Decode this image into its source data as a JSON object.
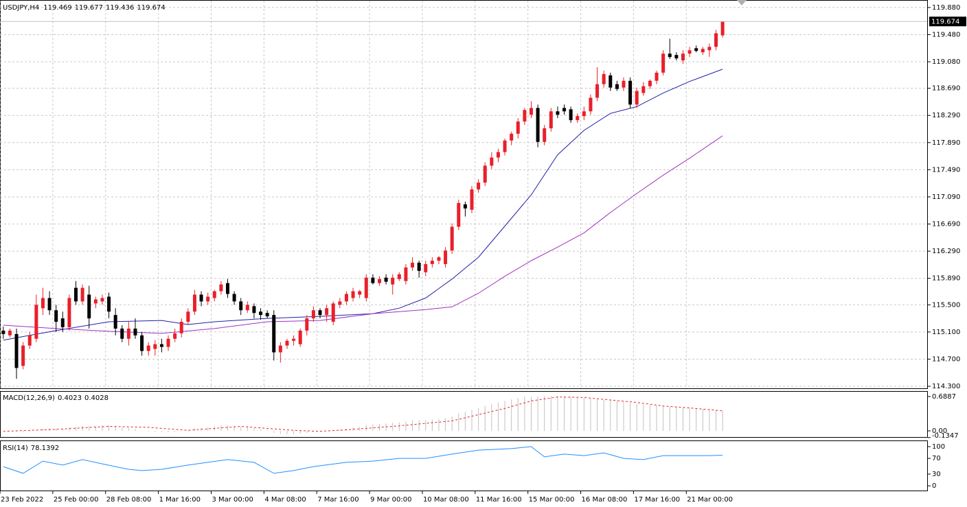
{
  "chart_data": [
    {
      "type": "candlestick",
      "title": "USDJPY,H4",
      "up_color": "#e8202a",
      "down_color": "#000000",
      "grid": true,
      "xlim": [
        -0.5,
        140
      ],
      "ylim": [
        114.27,
        119.98
      ],
      "xticks": [
        {
          "value": -0.5,
          "label": "23 Feb 2022"
        },
        {
          "value": 7.5,
          "label": "25 Feb 00:00"
        },
        {
          "value": 15.5,
          "label": "28 Feb 08:00"
        },
        {
          "value": 23.5,
          "label": "1 Mar 16:00"
        },
        {
          "value": 31.5,
          "label": "3 Mar 00:00"
        },
        {
          "value": 39.5,
          "label": "4 Mar 08:00"
        },
        {
          "value": 47.5,
          "label": "7 Mar 16:00"
        },
        {
          "value": 55.5,
          "label": "9 Mar 00:00"
        },
        {
          "value": 63.5,
          "label": "10 Mar 08:00"
        },
        {
          "value": 71.5,
          "label": "11 Mar 16:00"
        },
        {
          "value": 79.5,
          "label": "15 Mar 00:00"
        },
        {
          "value": 87.5,
          "label": "16 Mar 08:00"
        },
        {
          "value": 95.5,
          "label": "17 Mar 16:00"
        },
        {
          "value": 103.5,
          "label": "21 Mar 00:00"
        }
      ],
      "yticks": [
        {
          "value": 114.3,
          "label": "114.300"
        },
        {
          "value": 114.7,
          "label": "114.700"
        },
        {
          "value": 115.1,
          "label": "115.100"
        },
        {
          "value": 115.5,
          "label": "115.500"
        },
        {
          "value": 115.89,
          "label": "115.890"
        },
        {
          "value": 116.29,
          "label": "116.290"
        },
        {
          "value": 116.69,
          "label": "116.690"
        },
        {
          "value": 117.09,
          "label": "117.090"
        },
        {
          "value": 117.49,
          "label": "117.490"
        },
        {
          "value": 117.89,
          "label": "117.890"
        },
        {
          "value": 118.29,
          "label": "118.290"
        },
        {
          "value": 118.69,
          "label": "118.690"
        },
        {
          "value": 119.08,
          "label": "119.080"
        },
        {
          "value": 119.48,
          "label": "119.480"
        },
        {
          "value": 119.88,
          "label": "119.880"
        }
      ],
      "ohlc": [
        [
          115.12,
          115.18,
          115.0,
          115.07
        ],
        [
          115.05,
          115.15,
          115.02,
          115.12
        ],
        [
          115.07,
          115.15,
          114.41,
          114.57
        ],
        [
          114.6,
          114.95,
          114.55,
          114.9
        ],
        [
          114.9,
          115.1,
          114.85,
          115.05
        ],
        [
          115.0,
          115.65,
          114.95,
          115.5
        ],
        [
          115.45,
          115.75,
          115.35,
          115.6
        ],
        [
          115.6,
          115.7,
          115.35,
          115.42
        ],
        [
          115.42,
          115.5,
          115.1,
          115.25
        ],
        [
          115.3,
          115.4,
          115.1,
          115.17
        ],
        [
          115.17,
          115.65,
          115.12,
          115.6
        ],
        [
          115.75,
          115.85,
          115.5,
          115.55
        ],
        [
          115.55,
          115.8,
          115.5,
          115.75
        ],
        [
          115.65,
          115.78,
          115.15,
          115.3
        ],
        [
          115.52,
          115.62,
          115.45,
          115.58
        ],
        [
          115.55,
          115.65,
          115.5,
          115.6
        ],
        [
          115.62,
          115.68,
          115.3,
          115.4
        ],
        [
          115.35,
          115.45,
          115.05,
          115.15
        ],
        [
          115.15,
          115.2,
          114.95,
          115.0
        ],
        [
          115.0,
          115.25,
          114.9,
          115.15
        ],
        [
          115.15,
          115.3,
          115.0,
          115.05
        ],
        [
          115.05,
          115.1,
          114.75,
          114.82
        ],
        [
          114.82,
          114.95,
          114.75,
          114.9
        ],
        [
          114.85,
          114.98,
          114.75,
          114.92
        ],
        [
          114.92,
          115.0,
          114.8,
          114.88
        ],
        [
          114.88,
          115.05,
          114.82,
          115.0
        ],
        [
          115.0,
          115.15,
          114.95,
          115.08
        ],
        [
          115.08,
          115.3,
          115.02,
          115.25
        ],
        [
          115.25,
          115.45,
          115.2,
          115.4
        ],
        [
          115.4,
          115.72,
          115.35,
          115.65
        ],
        [
          115.65,
          115.7,
          115.48,
          115.55
        ],
        [
          115.55,
          115.68,
          115.5,
          115.62
        ],
        [
          115.6,
          115.72,
          115.55,
          115.7
        ],
        [
          115.7,
          115.85,
          115.65,
          115.8
        ],
        [
          115.82,
          115.88,
          115.6,
          115.66
        ],
        [
          115.66,
          115.7,
          115.5,
          115.55
        ],
        [
          115.55,
          115.6,
          115.35,
          115.42
        ],
        [
          115.42,
          115.55,
          115.38,
          115.5
        ],
        [
          115.48,
          115.52,
          115.3,
          115.38
        ],
        [
          115.4,
          115.45,
          115.28,
          115.35
        ],
        [
          115.38,
          115.42,
          115.3,
          115.33
        ],
        [
          115.35,
          115.42,
          114.68,
          114.8
        ],
        [
          114.8,
          114.95,
          114.65,
          114.9
        ],
        [
          114.9,
          115.0,
          114.85,
          114.97
        ],
        [
          114.97,
          115.05,
          114.9,
          115.0
        ],
        [
          114.92,
          115.15,
          114.88,
          115.12
        ],
        [
          115.12,
          115.35,
          115.05,
          115.3
        ],
        [
          115.3,
          115.48,
          115.25,
          115.42
        ],
        [
          115.42,
          115.45,
          115.3,
          115.35
        ],
        [
          115.35,
          115.5,
          115.25,
          115.45
        ],
        [
          115.25,
          115.55,
          115.2,
          115.52
        ],
        [
          115.5,
          115.6,
          115.45,
          115.55
        ],
        [
          115.55,
          115.7,
          115.5,
          115.66
        ],
        [
          115.6,
          115.75,
          115.55,
          115.7
        ],
        [
          115.65,
          115.72,
          115.6,
          115.7
        ],
        [
          115.6,
          115.95,
          115.55,
          115.9
        ],
        [
          115.9,
          115.95,
          115.8,
          115.82
        ],
        [
          115.82,
          115.92,
          115.78,
          115.88
        ],
        [
          115.9,
          115.95,
          115.8,
          115.84
        ],
        [
          115.8,
          115.95,
          115.65,
          115.9
        ],
        [
          115.88,
          115.98,
          115.85,
          115.95
        ],
        [
          115.85,
          116.1,
          115.8,
          116.05
        ],
        [
          116.05,
          116.2,
          116.0,
          116.12
        ],
        [
          116.12,
          116.15,
          115.9,
          116.0
        ],
        [
          115.98,
          116.15,
          115.92,
          116.1
        ],
        [
          116.1,
          116.2,
          116.05,
          116.15
        ],
        [
          116.15,
          116.22,
          116.1,
          116.2
        ],
        [
          116.1,
          116.35,
          116.05,
          116.3
        ],
        [
          116.3,
          116.7,
          116.25,
          116.65
        ],
        [
          116.65,
          117.05,
          116.6,
          117.0
        ],
        [
          116.98,
          117.02,
          116.8,
          116.92
        ],
        [
          116.9,
          117.25,
          116.85,
          117.2
        ],
        [
          117.2,
          117.35,
          117.15,
          117.3
        ],
        [
          117.3,
          117.6,
          117.25,
          117.55
        ],
        [
          117.55,
          117.75,
          117.5,
          117.67
        ],
        [
          117.67,
          117.8,
          117.6,
          117.75
        ],
        [
          117.75,
          117.95,
          117.7,
          117.92
        ],
        [
          117.92,
          118.05,
          117.85,
          118.02
        ],
        [
          118.02,
          118.25,
          117.95,
          118.2
        ],
        [
          118.2,
          118.4,
          118.15,
          118.37
        ],
        [
          118.3,
          118.5,
          118.25,
          118.4
        ],
        [
          118.4,
          118.45,
          117.82,
          117.9
        ],
        [
          117.9,
          118.15,
          117.85,
          118.1
        ],
        [
          118.1,
          118.4,
          118.05,
          118.35
        ],
        [
          118.35,
          118.42,
          118.25,
          118.3
        ],
        [
          118.4,
          118.45,
          118.3,
          118.35
        ],
        [
          118.38,
          118.42,
          118.18,
          118.22
        ],
        [
          118.22,
          118.32,
          118.18,
          118.28
        ],
        [
          118.28,
          118.42,
          118.22,
          118.35
        ],
        [
          118.35,
          118.6,
          118.3,
          118.55
        ],
        [
          118.55,
          119.0,
          118.5,
          118.75
        ],
        [
          118.75,
          118.95,
          118.7,
          118.9
        ],
        [
          118.88,
          118.92,
          118.65,
          118.7
        ],
        [
          118.75,
          118.8,
          118.65,
          118.68
        ],
        [
          118.7,
          118.85,
          118.65,
          118.8
        ],
        [
          118.8,
          118.85,
          118.4,
          118.45
        ],
        [
          118.45,
          118.7,
          118.4,
          118.65
        ],
        [
          118.62,
          118.78,
          118.58,
          118.72
        ],
        [
          118.72,
          118.82,
          118.68,
          118.8
        ],
        [
          118.8,
          118.95,
          118.75,
          118.92
        ],
        [
          118.92,
          119.25,
          118.88,
          119.2
        ],
        [
          119.2,
          119.42,
          119.12,
          119.15
        ],
        [
          119.18,
          119.22,
          119.1,
          119.13
        ],
        [
          119.1,
          119.25,
          119.05,
          119.2
        ],
        [
          119.2,
          119.3,
          119.15,
          119.25
        ],
        [
          119.28,
          119.32,
          119.22,
          119.24
        ],
        [
          119.22,
          119.3,
          119.18,
          119.27
        ],
        [
          119.25,
          119.35,
          119.15,
          119.3
        ],
        [
          119.3,
          119.55,
          119.25,
          119.5
        ],
        [
          119.469,
          119.677,
          119.436,
          119.674
        ]
      ],
      "lines": [
        {
          "color": "#1f1fa8",
          "x": [
            0,
            8,
            16,
            24,
            28,
            32,
            40,
            48,
            56,
            60,
            64,
            68,
            72,
            76,
            80,
            84,
            88,
            92,
            96,
            100,
            104,
            109
          ],
          "values": [
            114.98,
            115.12,
            115.25,
            115.27,
            115.21,
            115.25,
            115.3,
            115.33,
            115.37,
            115.45,
            115.6,
            115.88,
            116.2,
            116.66,
            117.12,
            117.71,
            118.07,
            118.32,
            118.42,
            118.62,
            118.79,
            118.97
          ]
        },
        {
          "color": "#a030c0",
          "x": [
            0,
            8,
            16,
            24,
            32,
            40,
            48,
            56,
            64,
            68,
            72,
            76,
            80,
            84,
            88,
            92,
            96,
            100,
            104,
            109
          ],
          "values": [
            115.2,
            115.15,
            115.11,
            115.08,
            115.15,
            115.25,
            115.27,
            115.37,
            115.43,
            115.47,
            115.67,
            115.92,
            116.15,
            116.35,
            116.56,
            116.86,
            117.14,
            117.41,
            117.66,
            117.99
          ]
        }
      ]
    },
    {
      "type": "macd",
      "title": "MACD(12,26,9)",
      "color": "#c0c0c0",
      "xlim": [
        -0.5,
        140
      ],
      "ylim": [
        -0.124,
        0.785
      ],
      "yticks": [
        0.6887,
        {
          "value": 0,
          "label": "0.00"
        },
        -0.1347
      ],
      "values": [
        0.0,
        0.0,
        -0.02,
        -0.03,
        -0.02,
        0.01,
        0.04,
        0.05,
        0.05,
        0.05,
        0.07,
        0.08,
        0.1,
        0.1,
        0.1,
        0.11,
        0.11,
        0.1,
        0.07,
        0.06,
        0.04,
        0.01,
        -0.01,
        -0.02,
        -0.03,
        -0.03,
        -0.02,
        0.0,
        0.02,
        0.05,
        0.06,
        0.07,
        0.09,
        0.11,
        0.11,
        0.1,
        0.08,
        0.07,
        0.05,
        0.03,
        0.02,
        -0.04,
        -0.06,
        -0.07,
        -0.07,
        -0.06,
        -0.04,
        -0.02,
        -0.01,
        0.0,
        0.02,
        0.03,
        0.05,
        0.07,
        0.08,
        0.12,
        0.13,
        0.14,
        0.15,
        0.16,
        0.17,
        0.19,
        0.21,
        0.21,
        0.22,
        0.23,
        0.24,
        0.25,
        0.29,
        0.35,
        0.38,
        0.42,
        0.46,
        0.5,
        0.54,
        0.57,
        0.6,
        0.63,
        0.66,
        0.69,
        0.68,
        0.69,
        0.7,
        0.7,
        0.7,
        0.69,
        0.68,
        0.67,
        0.66,
        0.65,
        0.64,
        0.63,
        0.62,
        0.6,
        0.58,
        0.56,
        0.54,
        0.53,
        0.52,
        0.51,
        0.5,
        0.49,
        0.48,
        0.47,
        0.46,
        0.45,
        0.44,
        0.43,
        0.42,
        0.4023
      ],
      "signal": {
        "color": "#e8202a",
        "x": [
          0,
          8,
          16,
          22,
          28,
          36,
          44,
          48,
          52,
          60,
          68,
          76,
          80,
          84,
          88,
          92,
          96,
          100,
          104,
          109
        ],
        "values": [
          -0.01,
          0.03,
          0.09,
          0.07,
          0.01,
          0.09,
          0.01,
          -0.01,
          0.02,
          0.1,
          0.2,
          0.45,
          0.6,
          0.68,
          0.67,
          0.62,
          0.57,
          0.5,
          0.46,
          0.4028
        ]
      }
    },
    {
      "type": "line",
      "title": "RSI(14)",
      "color": "#1e90ff",
      "xlim": [
        -0.5,
        140
      ],
      "ylim": [
        -12,
        114
      ],
      "yticks": [
        100,
        70,
        30,
        0
      ],
      "x": [
        0,
        3,
        6,
        9,
        12,
        15,
        19,
        21,
        24,
        28,
        31,
        34,
        38,
        41,
        44,
        47,
        52,
        56,
        60,
        64,
        68,
        72,
        77,
        80,
        82,
        85,
        88,
        91,
        94,
        97,
        100,
        103,
        107,
        109
      ],
      "values": [
        49,
        32,
        63,
        53,
        67,
        56,
        42,
        39,
        42,
        53,
        60,
        67,
        60,
        32,
        39,
        49,
        60,
        63,
        70,
        70,
        81,
        91,
        95,
        100,
        74,
        81,
        77,
        84,
        70,
        67,
        77,
        77,
        77,
        78.1392
      ]
    }
  ]
}
